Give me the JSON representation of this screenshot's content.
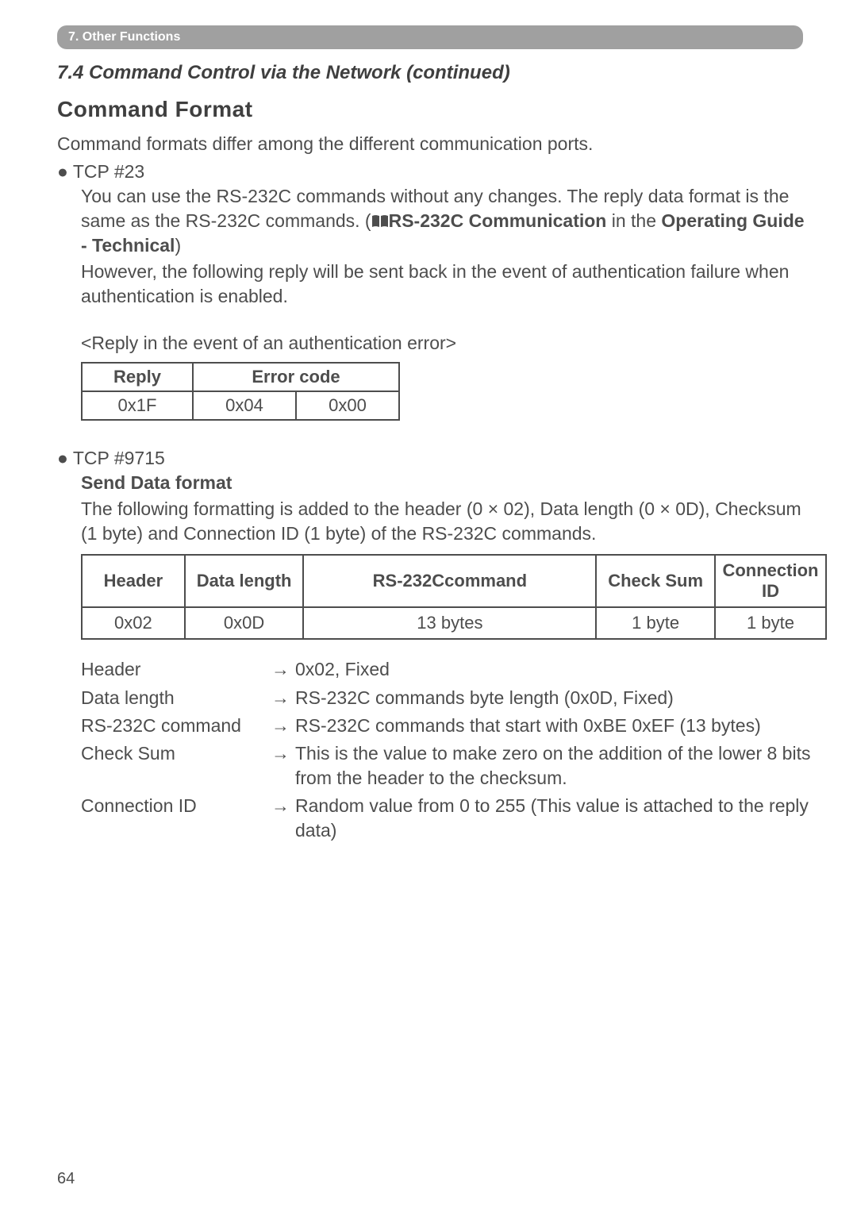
{
  "section_tab": "7. Other Functions",
  "subtitle": "7.4 Command Control via the Network (continued)",
  "command_format_heading": "Command Format",
  "intro": "Command formats differ among the different communication ports.",
  "tcp23_bullet": "● TCP #23",
  "tcp23_p1a": "You can use the RS-232C commands without any changes. The reply data format is the same as the RS-232C commands. (",
  "tcp23_p1b": "RS-232C Communication",
  "tcp23_p1c": " in the ",
  "tcp23_p1d": "Operating Guide - Technical",
  "tcp23_p1e": ")",
  "tcp23_p2": "However, the following reply will be sent back in the event of authentication failure when authentication is enabled.",
  "reply_caption": "<Reply in the event of an authentication error>",
  "table1": {
    "h1": "Reply",
    "h2": "Error code",
    "r1c1": "0x1F",
    "r1c2": "0x04",
    "r1c3": "0x00"
  },
  "tcp9715_bullet": "● TCP #9715",
  "send_data_heading": "Send Data format",
  "senddata_p1": "The following formatting is added to the header (0 × 02), Data length (0 × 0D), Checksum (1 byte) and Connection ID (1 byte) of the RS-232C commands.",
  "table2": {
    "h1": "Header",
    "h2": "Data length",
    "h3": "RS-232Ccommand",
    "h4": "Check Sum",
    "h5": "Connection ID",
    "r1c1": "0x02",
    "r1c2": "0x0D",
    "r1c3": "13 bytes",
    "r1c4": "1 byte",
    "r1c5": "1 byte",
    "col_widths": [
      "130px",
      "150px",
      "370px",
      "150px",
      "140px"
    ]
  },
  "defs": [
    {
      "label": "Header",
      "value": "0x02, Fixed"
    },
    {
      "label": "Data length",
      "value": "RS-232C commands byte length (0x0D, Fixed)"
    },
    {
      "label": "RS-232C command",
      "value": "RS-232C commands that start with 0xBE 0xEF (13 bytes)"
    },
    {
      "label": "Check Sum",
      "value": "This is the value to make zero on the addition of the lower 8 bits from the header to the checksum."
    },
    {
      "label": "Connection ID",
      "value": "Random value from 0 to 255 (This value is attached to the reply data)"
    }
  ],
  "arrow": "→",
  "page": "64"
}
